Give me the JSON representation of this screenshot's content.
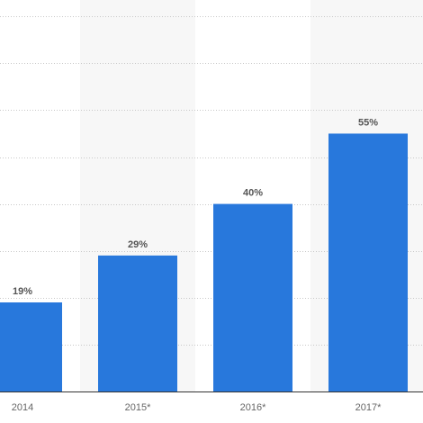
{
  "chart_data": {
    "type": "bar",
    "categories": [
      "2014",
      "2015*",
      "2016*",
      "2017*"
    ],
    "values": [
      19,
      29,
      40,
      55
    ],
    "value_labels": [
      "19%",
      "29%",
      "40%",
      "55%"
    ],
    "title": "",
    "xlabel": "",
    "ylabel": "",
    "ylim": [
      0,
      80
    ],
    "y_grid_step": 10,
    "grid": true,
    "legend": "none",
    "colors": {
      "bar": "#2878dc",
      "band": "#f7f7f7",
      "grid": "#c8c8c8",
      "axis": "#333333"
    }
  }
}
